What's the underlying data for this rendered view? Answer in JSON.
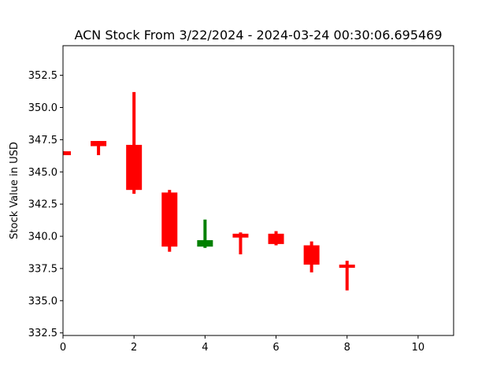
{
  "chart_data": {
    "type": "candlestick",
    "title": "ACN Stock From 3/22/2024 - 2024-03-24 00:30:06.695469",
    "xlabel": "",
    "ylabel": "Stock Value in USD",
    "xlim": [
      0,
      11
    ],
    "ylim": [
      332.3,
      354.8
    ],
    "x_ticks": [
      0,
      2,
      4,
      6,
      8,
      10
    ],
    "y_ticks": [
      332.5,
      335.0,
      337.5,
      340.0,
      342.5,
      345.0,
      347.5,
      350.0,
      352.5
    ],
    "grid": false,
    "colors": {
      "up": "#008000",
      "down": "#ff0000"
    },
    "candles": [
      {
        "x": 0,
        "open": 346.6,
        "close": 346.3,
        "high": 346.6,
        "low": 346.3
      },
      {
        "x": 1,
        "open": 347.4,
        "close": 347.0,
        "high": 347.4,
        "low": 346.3
      },
      {
        "x": 2,
        "open": 347.1,
        "close": 343.6,
        "high": 351.2,
        "low": 343.3
      },
      {
        "x": 3,
        "open": 343.4,
        "close": 339.2,
        "high": 343.6,
        "low": 338.8
      },
      {
        "x": 4,
        "open": 339.2,
        "close": 339.7,
        "high": 341.3,
        "low": 339.1
      },
      {
        "x": 5,
        "open": 340.2,
        "close": 339.9,
        "high": 340.3,
        "low": 338.6
      },
      {
        "x": 6,
        "open": 340.2,
        "close": 339.4,
        "high": 340.4,
        "low": 339.3
      },
      {
        "x": 7,
        "open": 339.3,
        "close": 337.8,
        "high": 339.6,
        "low": 337.2
      },
      {
        "x": 8,
        "open": 337.8,
        "close": 337.6,
        "high": 338.1,
        "low": 335.8
      }
    ]
  }
}
